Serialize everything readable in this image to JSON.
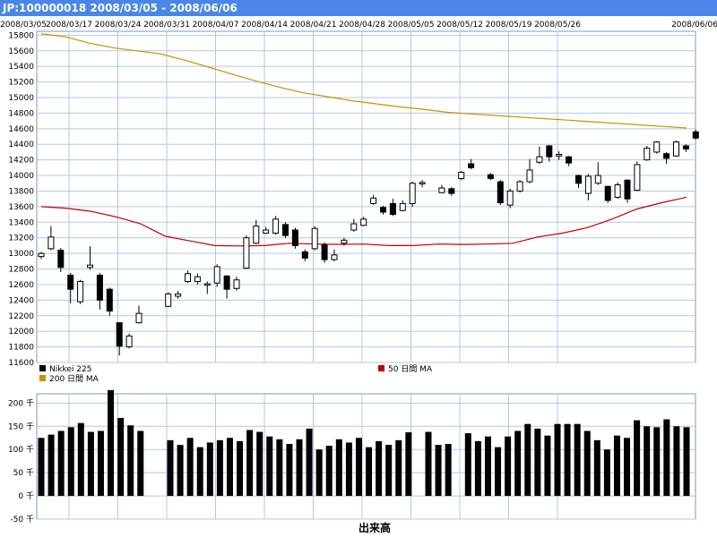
{
  "header": {
    "title": "JP:100000018 2008/03/05 - 2008/06/06"
  },
  "colors": {
    "grid": "#b0c8e8",
    "ma50": "#c00000",
    "ma200": "#c89000",
    "candle": "#000000",
    "volume": "#000000",
    "title_bg": "#4a86e8"
  },
  "chart_data": [
    {
      "type": "candlestick",
      "title": "",
      "x_dates": [
        "2008/03/05",
        "2008/03/17",
        "2008/03/24",
        "2008/03/31",
        "2008/04/07",
        "2008/04/14",
        "2008/04/21",
        "2008/04/28",
        "2008/05/05",
        "2008/05/12",
        "2008/05/19",
        "2008/05/26",
        "2008/06/06"
      ],
      "y_ticks": [
        11600,
        11800,
        12000,
        12200,
        12400,
        12600,
        12800,
        13000,
        13200,
        13400,
        13600,
        13800,
        14000,
        14200,
        14400,
        14600,
        14800,
        15000,
        15200,
        15400,
        15600,
        15800
      ],
      "ylim": [
        11600,
        15850
      ],
      "grid": true,
      "legend": [
        "Nikkei 225",
        "50 日間 MA",
        "200 日間 MA"
      ],
      "legend_placement": "bottom",
      "candles": [
        {
          "o": 12960,
          "c": 13000,
          "h": 13020,
          "l": 12930
        },
        {
          "o": 13060,
          "c": 13210,
          "h": 13350,
          "l": 13040
        },
        {
          "o": 13040,
          "c": 12820,
          "h": 13070,
          "l": 12760
        },
        {
          "o": 12720,
          "c": 12540,
          "h": 12750,
          "l": 12360
        },
        {
          "o": 12380,
          "c": 12640,
          "h": 12660,
          "l": 12350
        },
        {
          "o": 12820,
          "c": 12850,
          "h": 13090,
          "l": 12790
        },
        {
          "o": 12720,
          "c": 12400,
          "h": 12750,
          "l": 12280
        },
        {
          "o": 12540,
          "c": 12260,
          "h": 12560,
          "l": 12200
        },
        {
          "o": 12110,
          "c": 11810,
          "h": 12110,
          "l": 11690
        },
        {
          "o": 11800,
          "c": 11940,
          "h": 11970,
          "l": 11780
        },
        {
          "o": 12110,
          "c": 12230,
          "h": 12330,
          "l": 12100
        },
        {
          "o": 12320,
          "c": 12480,
          "h": 12500,
          "l": 12310
        },
        {
          "o": 12450,
          "c": 12480,
          "h": 12520,
          "l": 12420
        },
        {
          "o": 12640,
          "c": 12740,
          "h": 12780,
          "l": 12620
        },
        {
          "o": 12640,
          "c": 12700,
          "h": 12740,
          "l": 12600
        },
        {
          "o": 12600,
          "c": 12610,
          "h": 12640,
          "l": 12480
        },
        {
          "o": 12620,
          "c": 12830,
          "h": 12860,
          "l": 12570
        },
        {
          "o": 12710,
          "c": 12540,
          "h": 12720,
          "l": 12420
        },
        {
          "o": 12550,
          "c": 12660,
          "h": 12700,
          "l": 12520
        },
        {
          "o": 12810,
          "c": 13200,
          "h": 13230,
          "l": 12800
        },
        {
          "o": 13130,
          "c": 13350,
          "h": 13430,
          "l": 13120
        },
        {
          "o": 13260,
          "c": 13300,
          "h": 13340,
          "l": 13250
        },
        {
          "o": 13260,
          "c": 13440,
          "h": 13480,
          "l": 13240
        },
        {
          "o": 13370,
          "c": 13230,
          "h": 13400,
          "l": 13200
        },
        {
          "o": 13300,
          "c": 13100,
          "h": 13330,
          "l": 13060
        },
        {
          "o": 13020,
          "c": 12940,
          "h": 13050,
          "l": 12900
        },
        {
          "o": 13060,
          "c": 13320,
          "h": 13350,
          "l": 13040
        },
        {
          "o": 13110,
          "c": 12920,
          "h": 13140,
          "l": 12880
        },
        {
          "o": 12920,
          "c": 12980,
          "h": 13050,
          "l": 12900
        },
        {
          "o": 13130,
          "c": 13170,
          "h": 13200,
          "l": 13100
        },
        {
          "o": 13300,
          "c": 13380,
          "h": 13440,
          "l": 13280
        },
        {
          "o": 13360,
          "c": 13440,
          "h": 13470,
          "l": 13350
        },
        {
          "o": 13640,
          "c": 13710,
          "h": 13750,
          "l": 13620
        },
        {
          "o": 13590,
          "c": 13530,
          "h": 13610,
          "l": 13500
        },
        {
          "o": 13640,
          "c": 13500,
          "h": 13700,
          "l": 13480
        },
        {
          "o": 13550,
          "c": 13640,
          "h": 13680,
          "l": 13540
        },
        {
          "o": 13640,
          "c": 13900,
          "h": 13920,
          "l": 13600
        },
        {
          "o": 13900,
          "c": 13910,
          "h": 13940,
          "l": 13850
        },
        {
          "o": 13780,
          "c": 13840,
          "h": 13880,
          "l": 13770
        },
        {
          "o": 13830,
          "c": 13770,
          "h": 13850,
          "l": 13740
        },
        {
          "o": 13960,
          "c": 14040,
          "h": 14060,
          "l": 13940
        },
        {
          "o": 14150,
          "c": 14100,
          "h": 14210,
          "l": 14080
        },
        {
          "o": 14010,
          "c": 13960,
          "h": 14030,
          "l": 13940
        },
        {
          "o": 13920,
          "c": 13650,
          "h": 13940,
          "l": 13620
        },
        {
          "o": 13620,
          "c": 13800,
          "h": 13830,
          "l": 13580
        },
        {
          "o": 13800,
          "c": 13920,
          "h": 13940,
          "l": 13780
        },
        {
          "o": 13920,
          "c": 14070,
          "h": 14210,
          "l": 13900
        },
        {
          "o": 14170,
          "c": 14240,
          "h": 14370,
          "l": 14150
        },
        {
          "o": 14380,
          "c": 14240,
          "h": 14390,
          "l": 14180
        },
        {
          "o": 14250,
          "c": 14270,
          "h": 14310,
          "l": 14200
        },
        {
          "o": 14240,
          "c": 14160,
          "h": 14250,
          "l": 14120
        },
        {
          "o": 14000,
          "c": 13900,
          "h": 14010,
          "l": 13840
        },
        {
          "o": 13770,
          "c": 13990,
          "h": 14020,
          "l": 13680
        },
        {
          "o": 13900,
          "c": 14000,
          "h": 14170,
          "l": 13880
        },
        {
          "o": 13860,
          "c": 13680,
          "h": 13870,
          "l": 13650
        },
        {
          "o": 13720,
          "c": 13880,
          "h": 13910,
          "l": 13700
        },
        {
          "o": 13940,
          "c": 13700,
          "h": 13950,
          "l": 13650
        },
        {
          "o": 13810,
          "c": 14140,
          "h": 14180,
          "l": 13800
        },
        {
          "o": 14200,
          "c": 14350,
          "h": 14380,
          "l": 14190
        },
        {
          "o": 14300,
          "c": 14430,
          "h": 14440,
          "l": 14280
        },
        {
          "o": 14280,
          "c": 14220,
          "h": 14300,
          "l": 14150
        },
        {
          "o": 14250,
          "c": 14430,
          "h": 14450,
          "l": 14240
        },
        {
          "o": 14380,
          "c": 14340,
          "h": 14400,
          "l": 14300
        },
        {
          "o": 14560,
          "c": 14480,
          "h": 14590,
          "l": 14460
        }
      ],
      "ma50": [
        13600,
        13580,
        13540,
        13470,
        13380,
        13220,
        13160,
        13100,
        13095,
        13100,
        13130,
        13120,
        13115,
        13120,
        13100,
        13100,
        13120,
        13115,
        13120,
        13130,
        13210,
        13260,
        13330,
        13440,
        13570,
        13650,
        13720
      ],
      "ma200": [
        15820,
        15780,
        15700,
        15640,
        15600,
        15560,
        15480,
        15390,
        15300,
        15210,
        15130,
        15060,
        15010,
        14960,
        14920,
        14880,
        14850,
        14810,
        14790,
        14770,
        14750,
        14730,
        14710,
        14690,
        14670,
        14650,
        14630,
        14610
      ]
    },
    {
      "type": "bar",
      "title": "出来高",
      "y_ticks": [
        "-50 千",
        "0 千",
        "50 千",
        "100 千",
        "150 千",
        "200 千"
      ],
      "ylim": [
        -50,
        220
      ],
      "values": [
        125,
        132,
        140,
        148,
        157,
        138,
        140,
        228,
        168,
        152,
        140,
        0,
        0,
        120,
        110,
        125,
        105,
        115,
        120,
        125,
        118,
        142,
        138,
        128,
        122,
        112,
        122,
        145,
        100,
        108,
        122,
        115,
        125,
        105,
        118,
        110,
        120,
        137,
        0,
        138,
        110,
        112,
        0,
        135,
        118,
        128,
        105,
        128,
        140,
        155,
        145,
        130,
        155,
        155,
        155,
        140,
        120,
        100,
        130,
        125,
        163,
        150,
        148,
        165,
        150,
        148
      ]
    }
  ],
  "labels": {
    "legend_nikkei": "Nikkei 225",
    "legend_ma50": "50 日間 MA",
    "legend_ma200": "200 日間 MA",
    "volume_title": "出来高"
  }
}
